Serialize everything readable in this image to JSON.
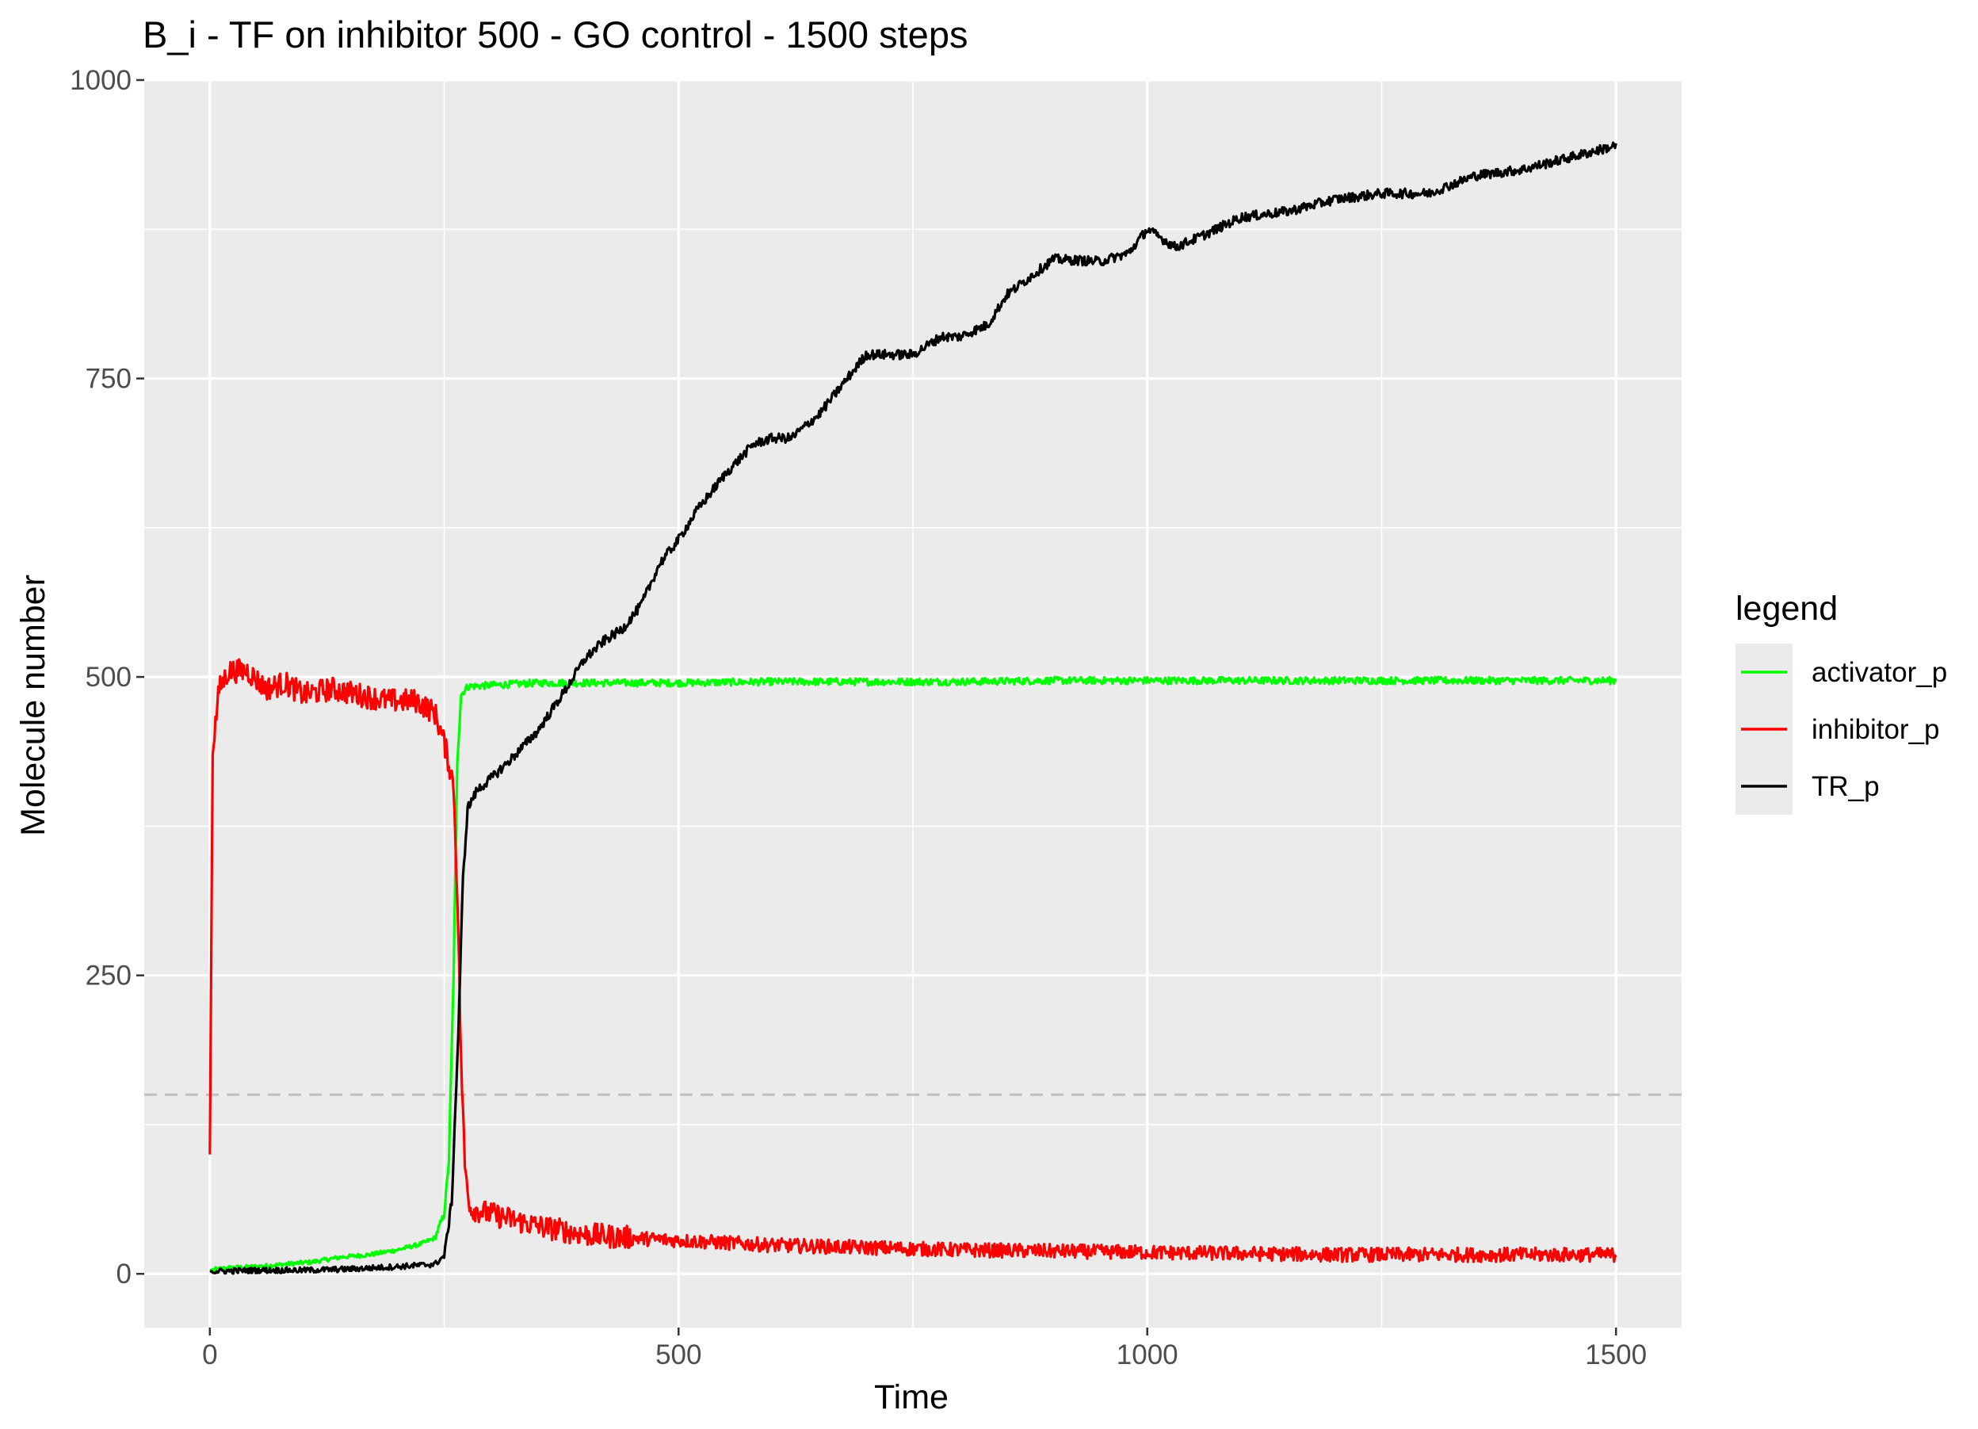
{
  "chart_data": {
    "type": "line",
    "title": "B_i - TF on inhibitor 500 - GO control - 1500 steps",
    "xlabel": "Time",
    "ylabel": "Molecule number",
    "xlim": [
      -70,
      1570
    ],
    "ylim": [
      -45,
      1000
    ],
    "x_ticks": [
      0,
      500,
      1000,
      1500
    ],
    "y_ticks": [
      0,
      250,
      500,
      750,
      1000
    ],
    "x_tick_labels": [
      "0",
      "500",
      "1000",
      "1500"
    ],
    "y_tick_labels": [
      "0",
      "250",
      "500",
      "750",
      "1000"
    ],
    "grid": true,
    "legend": {
      "title": "legend",
      "position": "right"
    },
    "reference_line": {
      "y": 150,
      "style": "dashed",
      "color": "#bfbfbf"
    },
    "series": [
      {
        "name": "activator_p",
        "color": "#00ff00",
        "points": [
          [
            0,
            3
          ],
          [
            20,
            5
          ],
          [
            50,
            6
          ],
          [
            80,
            8
          ],
          [
            110,
            10
          ],
          [
            140,
            14
          ],
          [
            170,
            16
          ],
          [
            200,
            20
          ],
          [
            225,
            25
          ],
          [
            240,
            30
          ],
          [
            250,
            50
          ],
          [
            255,
            95
          ],
          [
            260,
            250
          ],
          [
            264,
            430
          ],
          [
            268,
            485
          ],
          [
            275,
            492
          ],
          [
            300,
            493
          ],
          [
            350,
            495
          ],
          [
            400,
            495
          ],
          [
            500,
            495
          ],
          [
            600,
            496
          ],
          [
            700,
            496
          ],
          [
            800,
            496
          ],
          [
            900,
            497
          ],
          [
            1000,
            497
          ],
          [
            1100,
            497
          ],
          [
            1200,
            497
          ],
          [
            1300,
            497
          ],
          [
            1400,
            497
          ],
          [
            1500,
            497
          ]
        ],
        "noise": 3
      },
      {
        "name": "inhibitor_p",
        "color": "#ff0000",
        "points": [
          [
            0,
            100
          ],
          [
            3,
            440
          ],
          [
            10,
            490
          ],
          [
            20,
            505
          ],
          [
            40,
            505
          ],
          [
            60,
            490
          ],
          [
            80,
            495
          ],
          [
            100,
            485
          ],
          [
            130,
            490
          ],
          [
            160,
            485
          ],
          [
            190,
            480
          ],
          [
            220,
            480
          ],
          [
            240,
            470
          ],
          [
            250,
            445
          ],
          [
            260,
            410
          ],
          [
            264,
            320
          ],
          [
            268,
            180
          ],
          [
            272,
            90
          ],
          [
            278,
            55
          ],
          [
            300,
            50
          ],
          [
            350,
            40
          ],
          [
            400,
            33
          ],
          [
            450,
            30
          ],
          [
            500,
            28
          ],
          [
            600,
            24
          ],
          [
            700,
            22
          ],
          [
            800,
            20
          ],
          [
            900,
            19
          ],
          [
            1000,
            18
          ],
          [
            1100,
            17
          ],
          [
            1200,
            16
          ],
          [
            1300,
            16
          ],
          [
            1400,
            16
          ],
          [
            1500,
            16
          ]
        ],
        "noise": 10
      },
      {
        "name": "TR_p",
        "color": "#000000",
        "points": [
          [
            0,
            2
          ],
          [
            50,
            3
          ],
          [
            100,
            3
          ],
          [
            150,
            4
          ],
          [
            200,
            6
          ],
          [
            240,
            8
          ],
          [
            250,
            15
          ],
          [
            258,
            60
          ],
          [
            265,
            200
          ],
          [
            270,
            330
          ],
          [
            275,
            390
          ],
          [
            285,
            405
          ],
          [
            300,
            415
          ],
          [
            320,
            430
          ],
          [
            350,
            455
          ],
          [
            380,
            490
          ],
          [
            400,
            515
          ],
          [
            420,
            530
          ],
          [
            440,
            540
          ],
          [
            460,
            560
          ],
          [
            480,
            595
          ],
          [
            500,
            615
          ],
          [
            520,
            640
          ],
          [
            550,
            670
          ],
          [
            580,
            695
          ],
          [
            600,
            700
          ],
          [
            620,
            700
          ],
          [
            650,
            720
          ],
          [
            700,
            770
          ],
          [
            750,
            770
          ],
          [
            780,
            785
          ],
          [
            800,
            785
          ],
          [
            830,
            795
          ],
          [
            850,
            820
          ],
          [
            900,
            850
          ],
          [
            950,
            848
          ],
          [
            980,
            855
          ],
          [
            1000,
            875
          ],
          [
            1030,
            860
          ],
          [
            1060,
            870
          ],
          [
            1100,
            885
          ],
          [
            1150,
            890
          ],
          [
            1200,
            900
          ],
          [
            1250,
            905
          ],
          [
            1300,
            905
          ],
          [
            1350,
            920
          ],
          [
            1400,
            925
          ],
          [
            1450,
            935
          ],
          [
            1500,
            945
          ]
        ],
        "noise": 4
      }
    ]
  }
}
